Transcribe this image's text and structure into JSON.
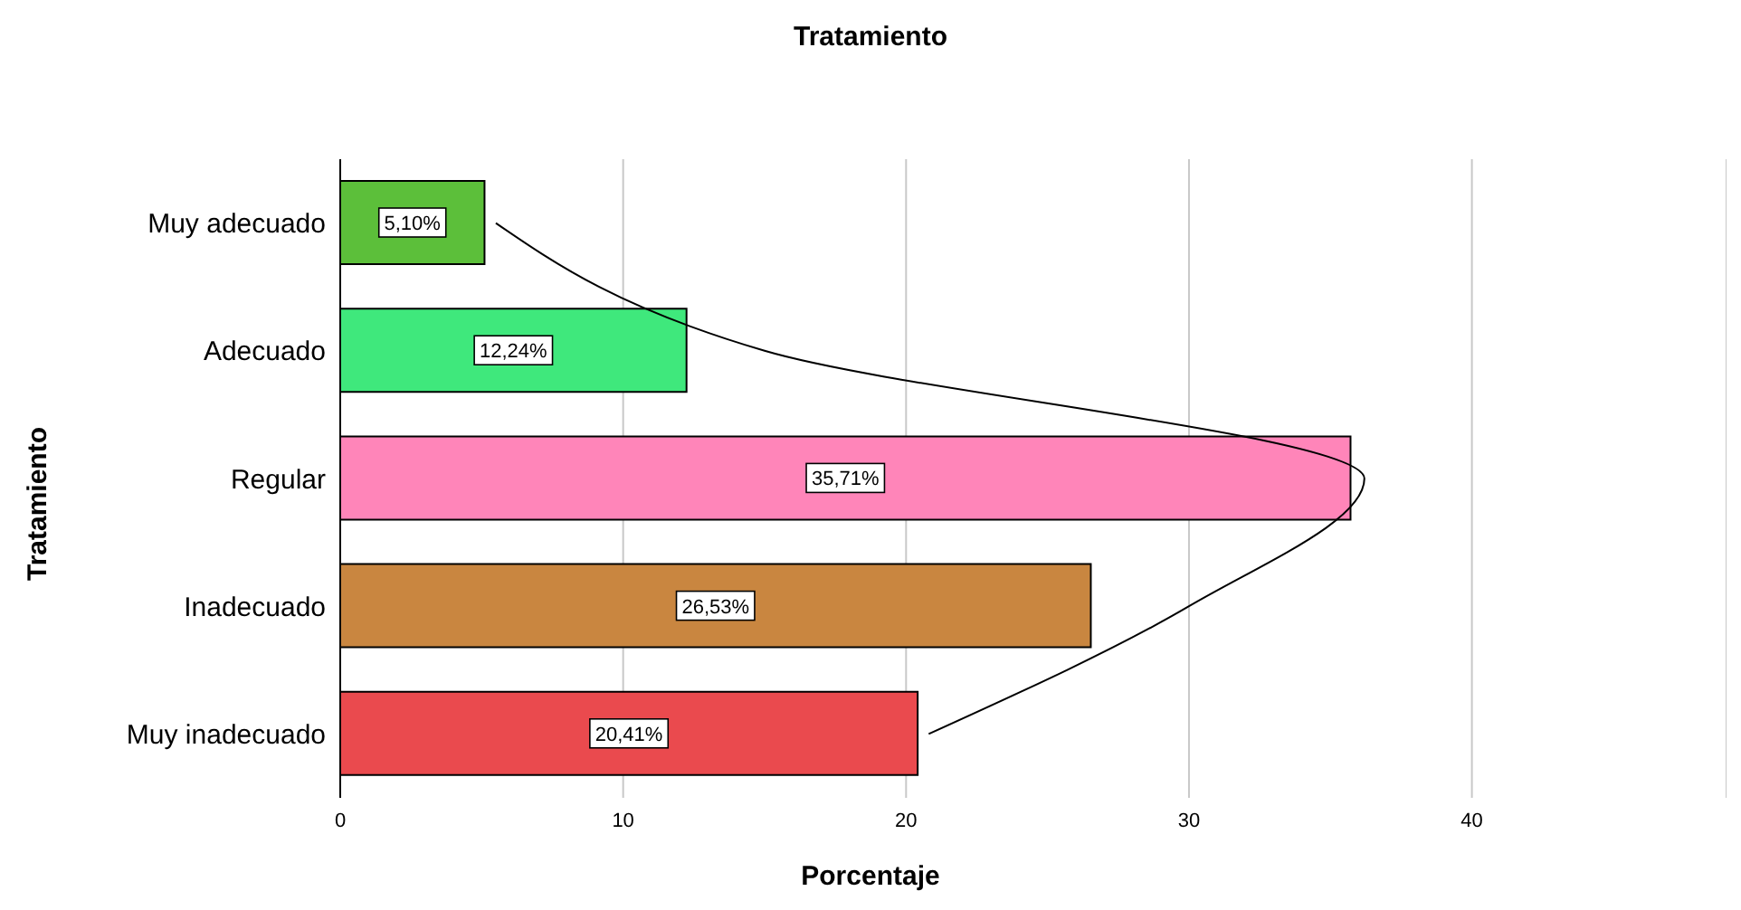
{
  "chart_data": {
    "type": "bar",
    "orientation": "horizontal",
    "title": "Tratamiento",
    "xlabel": "Porcentaje",
    "ylabel": "Tratamiento",
    "categories": [
      "Muy adecuado",
      "Adecuado",
      "Regular",
      "Inadecuado",
      "Muy inadecuado"
    ],
    "series": [
      {
        "values": [
          5.1,
          12.24,
          35.71,
          26.53,
          20.41
        ],
        "colors": [
          "#5cbf3a",
          "#3fe87c",
          "#ff85b9",
          "#c98640",
          "#ea4a4e"
        ],
        "value_labels": [
          "5,10%",
          "12,24%",
          "35,71%",
          "26,53%",
          "20,41%"
        ]
      },
      {
        "type": "line",
        "color": "#000000",
        "values": [
          5.5,
          15,
          36.2,
          30,
          20.8
        ],
        "marker": "none"
      }
    ],
    "xlim": [
      0,
      49
    ],
    "xticks": [
      0,
      10,
      20,
      30,
      40
    ],
    "grid": "x",
    "legend": false
  }
}
